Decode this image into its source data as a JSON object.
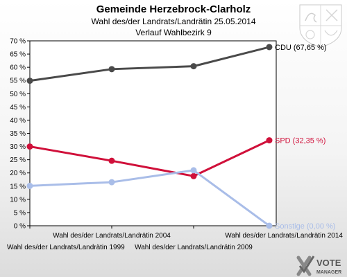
{
  "header": {
    "title": "Gemeinde Herzebrock-Clarholz",
    "subtitle1": "Wahl des/der Landrats/Landrätin 25.05.2014",
    "subtitle2": "Verlauf Wahlbezirk 9"
  },
  "brand": {
    "line1": "VOTE",
    "line2": "MANAGER",
    "color": "#555555"
  },
  "chart_data": {
    "type": "line",
    "categories": [
      "Wahl des/der Landrats/Landrätin 1999",
      "Wahl des/der Landrats/Landrätin 2004",
      "Wahl des/der Landrats/Landrätin 2009",
      "Wahl des/der Landrats/Landrätin 2014"
    ],
    "ylim": [
      0,
      70
    ],
    "yticks": [
      "0 %",
      "5 %",
      "10 %",
      "15 %",
      "20 %",
      "25 %",
      "30 %",
      "35 %",
      "40 %",
      "45 %",
      "50 %",
      "55 %",
      "60 %",
      "65 %",
      "70 %"
    ],
    "grid": false,
    "series": [
      {
        "name": "CDU",
        "color": "#4a4a4a",
        "values": [
          54.9,
          59.3,
          60.4,
          67.65
        ],
        "end_label": "CDU (67,65 %)"
      },
      {
        "name": "SPD",
        "color": "#d0103a",
        "values": [
          30.0,
          24.6,
          18.8,
          32.35
        ],
        "end_label": "SPD (32,35 %)"
      },
      {
        "name": "Sonstige",
        "color": "#a9bde8",
        "values": [
          15.1,
          16.5,
          21.0,
          0.0
        ],
        "end_label": "Sonstige (0,00 %)"
      }
    ]
  }
}
